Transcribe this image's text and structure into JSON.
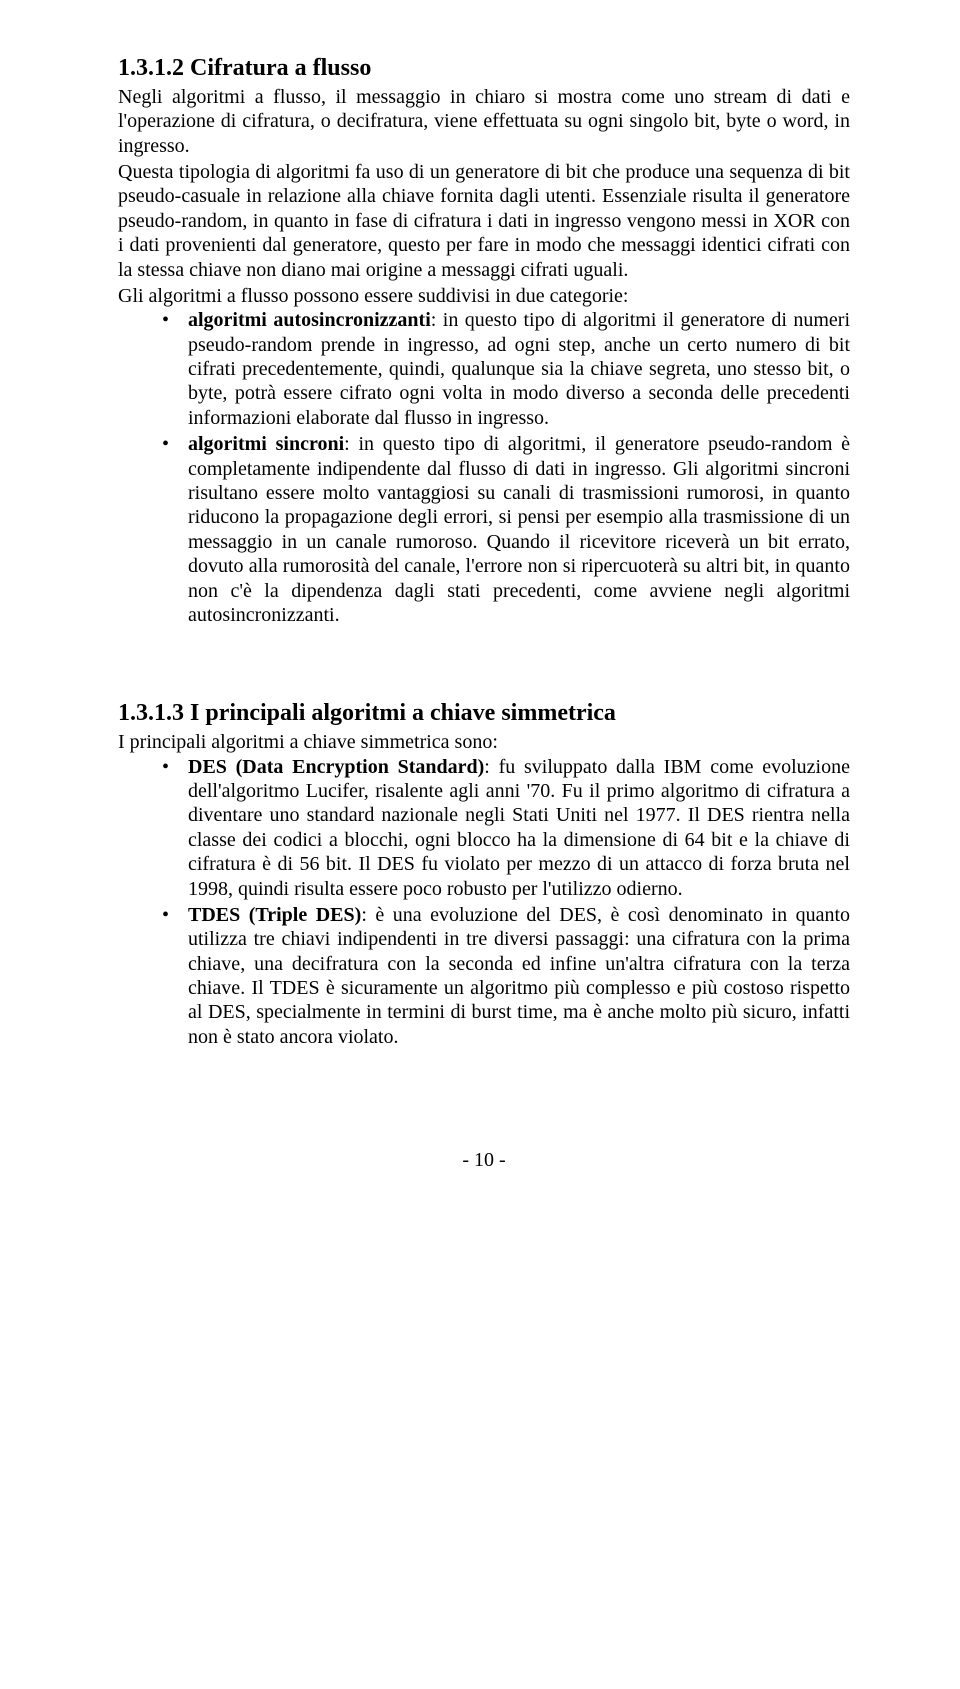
{
  "section1": {
    "heading": "1.3.1.2 Cifratura a flusso",
    "p1": "Negli algoritmi a flusso, il messaggio in chiaro si mostra come uno stream di dati e l'operazione di cifratura, o decifratura, viene effettuata su ogni singolo bit, byte o word, in ingresso.",
    "p2": "Questa tipologia di algoritmi fa uso di un generatore di bit che produce una sequenza di bit pseudo-casuale in relazione alla chiave fornita dagli utenti. Essenziale risulta il generatore pseudo-random, in quanto in fase di cifratura i dati in ingresso vengono messi in XOR con i dati provenienti dal generatore, questo per fare in modo che messaggi identici cifrati con la stessa chiave non diano mai origine a messaggi cifrati uguali.",
    "p3": "Gli algoritmi a flusso possono essere suddivisi in due categorie:",
    "bullets": [
      {
        "lead": "algoritmi autosincronizzanti",
        "rest": ": in questo tipo di algoritmi il generatore di numeri pseudo-random prende in ingresso, ad ogni step, anche un certo numero di bit cifrati precedentemente, quindi, qualunque sia la chiave segreta, uno stesso bit, o byte, potrà essere cifrato ogni volta in modo diverso a seconda delle precedenti informazioni elaborate dal flusso in ingresso."
      },
      {
        "lead": "algoritmi sincroni",
        "rest": ": in questo tipo di algoritmi, il generatore pseudo-random è completamente indipendente dal flusso di dati in ingresso. Gli algoritmi sincroni risultano essere molto vantaggiosi su canali di trasmissioni rumorosi, in quanto riducono la propagazione degli errori, si pensi per esempio alla trasmissione di un messaggio in un canale rumoroso. Quando il ricevitore riceverà un bit errato, dovuto alla rumorosità del canale, l'errore non si ripercuoterà su altri bit, in quanto non c'è la dipendenza dagli stati precedenti, come avviene negli algoritmi autosincronizzanti."
      }
    ]
  },
  "section2": {
    "heading": "1.3.1.3 I principali algoritmi a chiave simmetrica",
    "intro": "I principali algoritmi a chiave simmetrica sono:",
    "bullets": [
      {
        "lead": "DES (Data Encryption Standard)",
        "rest": ": fu sviluppato dalla IBM come evoluzione dell'algoritmo Lucifer, risalente agli anni '70. Fu il primo algoritmo di cifratura a diventare uno standard nazionale negli Stati Uniti nel 1977. Il DES rientra nella classe dei codici a blocchi, ogni blocco ha la dimensione di 64 bit e la chiave di cifratura è di 56 bit. Il DES fu violato per mezzo di un attacco di forza bruta nel 1998, quindi risulta essere poco robusto per l'utilizzo odierno."
      },
      {
        "lead": "TDES (Triple DES)",
        "rest": ": è una evoluzione del DES, è così denominato in quanto utilizza tre chiavi indipendenti in tre diversi passaggi: una cifratura con la prima chiave, una decifratura con la seconda ed infine un'altra cifratura con la terza chiave. Il TDES è sicuramente un algoritmo più complesso e più costoso rispetto al DES, specialmente in termini di burst time, ma è anche molto più sicuro, infatti non è stato ancora violato."
      }
    ]
  },
  "footer": "- 10 -"
}
